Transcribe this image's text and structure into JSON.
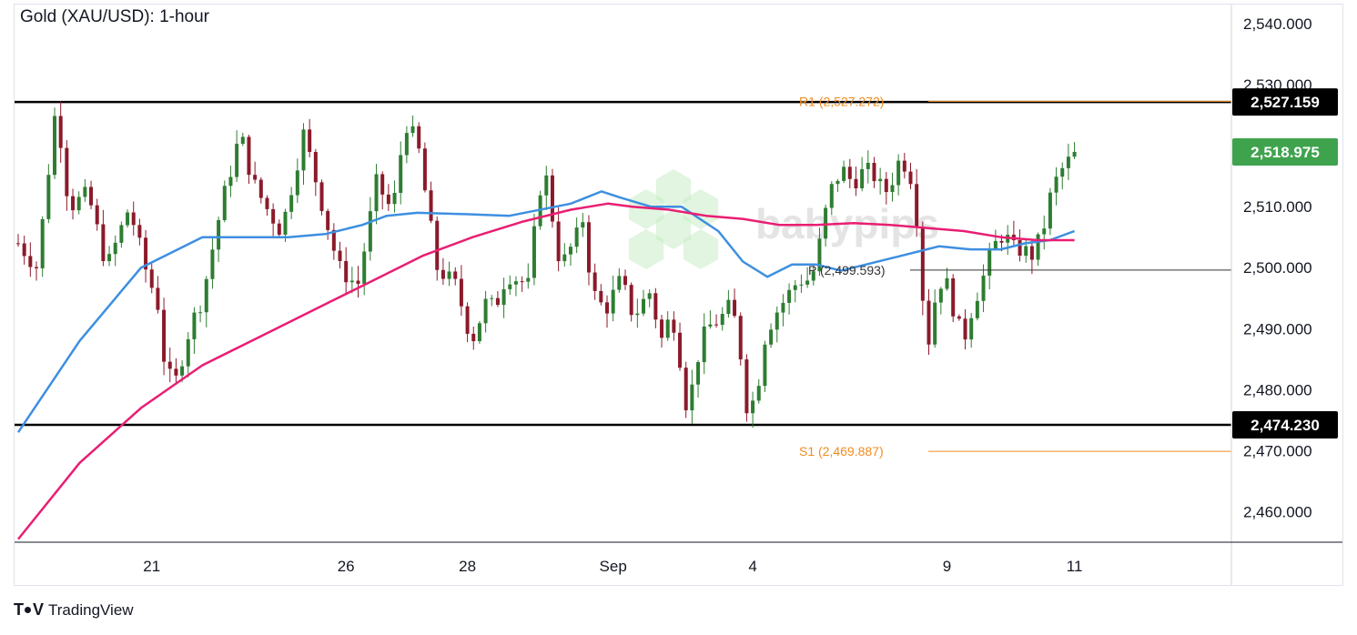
{
  "title": "Gold (XAU/USD): 1-hour",
  "brand": {
    "name": "TradingView",
    "watermark": "babypips"
  },
  "colors": {
    "up_candle": "#2e7d32",
    "down_candle": "#8b1a2b",
    "ma_fast": "#3d8fe0",
    "ma_slow": "#e91e73",
    "pivot": "#f28c1e",
    "price_badge": "#3fa34d",
    "level_badge": "#000000"
  },
  "chart_data": {
    "type": "candlestick",
    "timeframe": "1-hour",
    "ylim": [
      2455,
      2545
    ],
    "y_ticks": [
      "2,540.000",
      "2,530.000",
      "2,510.000",
      "2,500.000",
      "2,490.000",
      "2,480.000",
      "2,470.000",
      "2,460.000"
    ],
    "x_ticks": [
      "21",
      "26",
      "28",
      "Sep",
      "4",
      "9",
      "11"
    ],
    "x_tick_positions": [
      22,
      54,
      74,
      98,
      121,
      153,
      174
    ],
    "bar_count": 175,
    "key_points": [
      [
        0,
        2504.0
      ],
      [
        6,
        2500.0
      ],
      [
        12,
        2527.0
      ],
      [
        16,
        2510.0
      ],
      [
        22,
        2512.0
      ],
      [
        28,
        2500.0
      ],
      [
        35,
        2510.0
      ],
      [
        40,
        2500.0
      ],
      [
        44,
        2494.0
      ],
      [
        46,
        2485.0
      ],
      [
        49,
        2480.0
      ],
      [
        54,
        2490.0
      ],
      [
        58,
        2495.0
      ],
      [
        64,
        2510.0
      ],
      [
        70,
        2522.0
      ],
      [
        74,
        2514.0
      ],
      [
        78,
        2510.0
      ],
      [
        83,
        2506.0
      ],
      [
        90,
        2522.0
      ],
      [
        94,
        2514.0
      ],
      [
        98,
        2506.0
      ],
      [
        101,
        2500.0
      ],
      [
        107,
        2497.0
      ],
      [
        113,
        2514.0
      ],
      [
        118,
        2509.0
      ],
      [
        122,
        2524.0
      ],
      [
        126,
        2520.0
      ],
      [
        129,
        2510.0
      ],
      [
        132,
        2500.0
      ],
      [
        138,
        2497.0
      ],
      [
        143,
        2488.0
      ],
      [
        148,
        2495.0
      ],
      [
        150,
        2493.0
      ],
      [
        154,
        2499.0
      ],
      [
        158,
        2498.0
      ],
      [
        161,
        2497.0
      ],
      [
        164,
        2512.0
      ],
      [
        166,
        2516.0
      ],
      [
        171,
        2500.0
      ],
      [
        176,
        2505.0
      ],
      [
        178,
        2508.0
      ],
      [
        181,
        2496.0
      ],
      [
        185,
        2493.0
      ],
      [
        190,
        2498.0
      ],
      [
        194,
        2492.0
      ],
      [
        199,
        2496.0
      ],
      [
        203,
        2488.0
      ],
      [
        206,
        2493.0
      ],
      [
        209,
        2484.0
      ],
      [
        211,
        2476.0
      ],
      [
        214,
        2485.0
      ],
      [
        217,
        2490.0
      ],
      [
        222,
        2492.0
      ],
      [
        225,
        2494.0
      ],
      [
        228,
        2485.0
      ],
      [
        230,
        2476.0
      ],
      [
        233,
        2480.0
      ],
      [
        235,
        2488.0
      ],
      [
        238,
        2492.0
      ],
      [
        242,
        2495.0
      ],
      [
        246,
        2498.0
      ],
      [
        250,
        2498.0
      ],
      [
        252,
        2502.0
      ],
      [
        254,
        2508.0
      ],
      [
        257,
        2514.0
      ],
      [
        260,
        2516.0
      ],
      [
        263,
        2514.0
      ],
      [
        267,
        2516.0
      ],
      [
        270,
        2515.0
      ],
      [
        273,
        2512.0
      ],
      [
        276,
        2515.0
      ],
      [
        278,
        2518.0
      ],
      [
        281,
        2516.0
      ],
      [
        283,
        2510.0
      ],
      [
        285,
        2496.0
      ],
      [
        287,
        2488.0
      ],
      [
        290,
        2498.0
      ],
      [
        293,
        2497.0
      ],
      [
        296,
        2491.0
      ],
      [
        298,
        2488.0
      ],
      [
        301,
        2494.0
      ],
      [
        304,
        2498.0
      ],
      [
        307,
        2503.0
      ],
      [
        311,
        2506.0
      ],
      [
        313,
        2503.0
      ],
      [
        316,
        2503.0
      ],
      [
        320,
        2502.0
      ],
      [
        323,
        2506.0
      ],
      [
        326,
        2513.0
      ],
      [
        329,
        2516.0
      ],
      [
        332,
        2518.0
      ],
      [
        333,
        2518.9
      ]
    ],
    "series": [
      {
        "name": "",
        "type": "line",
        "color": "#3d8fe0",
        "points": [
          [
            0,
            2473.0
          ],
          [
            10,
            2488.0
          ],
          [
            20,
            2500.0
          ],
          [
            30,
            2505.0
          ],
          [
            38,
            2505.0
          ],
          [
            44,
            2505.0
          ],
          [
            50,
            2505.5
          ],
          [
            56,
            2507.0
          ],
          [
            60,
            2508.5
          ],
          [
            65,
            2509.0
          ],
          [
            72,
            2508.8
          ],
          [
            80,
            2508.5
          ],
          [
            90,
            2510.5
          ],
          [
            95,
            2512.5
          ],
          [
            98,
            2511.5
          ],
          [
            103,
            2510.0
          ],
          [
            108,
            2510.0
          ],
          [
            114,
            2506.0
          ],
          [
            118,
            2501.0
          ],
          [
            122,
            2498.5
          ],
          [
            126,
            2500.5
          ],
          [
            130,
            2500.5
          ],
          [
            134,
            2499.5
          ],
          [
            138,
            2500.5
          ],
          [
            144,
            2502.0
          ],
          [
            150,
            2503.5
          ],
          [
            155,
            2503.0
          ],
          [
            160,
            2503.0
          ],
          [
            164,
            2504.0
          ],
          [
            168,
            2504.5
          ],
          [
            172,
            2506.0
          ]
        ]
      },
      {
        "name": "",
        "type": "line",
        "color": "#e91e73",
        "points": [
          [
            0,
            2455.5
          ],
          [
            10,
            2468.0
          ],
          [
            20,
            2477.0
          ],
          [
            30,
            2484.0
          ],
          [
            40,
            2489.0
          ],
          [
            50,
            2494.0
          ],
          [
            58,
            2498.0
          ],
          [
            66,
            2502.0
          ],
          [
            74,
            2505.0
          ],
          [
            82,
            2507.5
          ],
          [
            90,
            2509.5
          ],
          [
            96,
            2510.5
          ],
          [
            100,
            2510.0
          ],
          [
            106,
            2509.5
          ],
          [
            112,
            2508.5
          ],
          [
            118,
            2508.0
          ],
          [
            124,
            2507.0
          ],
          [
            130,
            2507.0
          ],
          [
            136,
            2507.3
          ],
          [
            142,
            2507.0
          ],
          [
            148,
            2506.5
          ],
          [
            154,
            2506.0
          ],
          [
            160,
            2505.0
          ],
          [
            166,
            2504.5
          ],
          [
            172,
            2504.5
          ]
        ]
      }
    ],
    "levels": [
      {
        "name": "resistance",
        "value": 2527.159,
        "label": "2,527.159"
      },
      {
        "name": "support",
        "value": 2474.23,
        "label": "2,474.230"
      },
      {
        "name": "current-price",
        "value": 2518.975,
        "label": "2,518.975"
      }
    ],
    "pivot_points": [
      {
        "label": "R1 (2,527.272)",
        "value": 2527.272
      },
      {
        "label": "P (2,499.593)",
        "value": 2499.593
      },
      {
        "label": "S1 (2,469.887)",
        "value": 2469.887
      }
    ]
  }
}
